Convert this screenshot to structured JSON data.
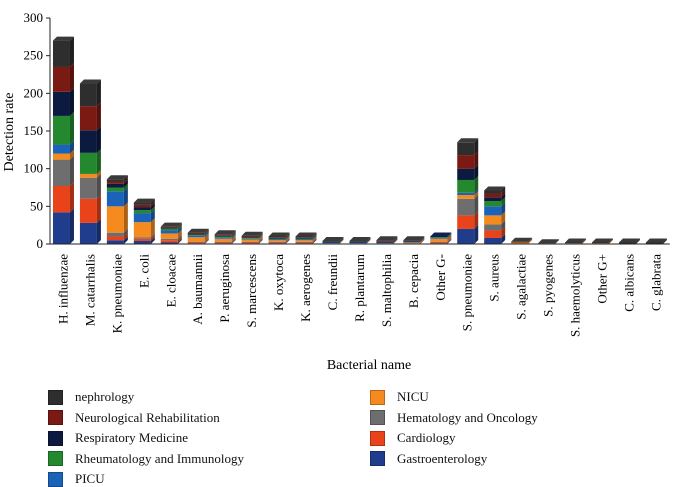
{
  "chart_data": {
    "type": "bar",
    "stacked": true,
    "title": "",
    "xlabel": "Bacterial name",
    "ylabel": "Detection rate",
    "ylim": [
      0,
      300
    ],
    "yticks": [
      0,
      50,
      100,
      150,
      200,
      250,
      300
    ],
    "categories": [
      "H. influenzae",
      "M. catarrhalis",
      "K. pneumoniae",
      "E. coli",
      "E. cloacae",
      "A. baumannii",
      "P. aeruginosa",
      "S. marcescens",
      "K. oxytoca",
      "K. aerogenes",
      "C. freundii",
      "R. plantarum",
      "S. maltophilia",
      "B. cepacia",
      "Other G-",
      "S. pneumoniae",
      "S. aureus",
      "S. agalactiae",
      "S. pyogenes",
      "S. haemolyticus",
      "Other G+",
      "C. albicans",
      "C. glabrata"
    ],
    "series": [
      {
        "name": "Gastroenterology",
        "color": "#1f3d8c",
        "values": [
          42,
          28,
          5,
          4,
          2,
          1,
          1,
          1,
          1,
          1,
          0,
          0,
          0,
          0,
          1,
          20,
          8,
          0,
          0,
          0,
          0,
          0,
          0
        ]
      },
      {
        "name": "Cardiology",
        "color": "#e8431a",
        "values": [
          35,
          32,
          5,
          3,
          3,
          1,
          1,
          1,
          1,
          1,
          0,
          0,
          0,
          1,
          1,
          18,
          10,
          0,
          0,
          0,
          0,
          0,
          0
        ]
      },
      {
        "name": "Hematology and Oncology",
        "color": "#6e6e6e",
        "values": [
          35,
          28,
          5,
          2,
          2,
          1,
          1,
          1,
          1,
          1,
          0,
          0,
          0,
          0,
          1,
          22,
          8,
          0,
          0,
          0,
          0,
          0,
          0
        ]
      },
      {
        "name": "NICU",
        "color": "#f58a1f",
        "values": [
          8,
          5,
          35,
          20,
          7,
          6,
          4,
          3,
          2,
          2,
          1,
          1,
          1,
          1,
          4,
          5,
          12,
          2,
          0,
          1,
          1,
          0,
          0
        ]
      },
      {
        "name": "PICU",
        "color": "#1b63b8",
        "values": [
          12,
          0,
          20,
          12,
          4,
          2,
          2,
          1,
          1,
          1,
          1,
          1,
          1,
          1,
          1,
          3,
          12,
          0,
          0,
          0,
          0,
          0,
          0
        ]
      },
      {
        "name": "Rheumatology and Immunology",
        "color": "#24892e",
        "values": [
          38,
          28,
          5,
          4,
          2,
          1,
          1,
          1,
          1,
          1,
          0,
          0,
          0,
          0,
          1,
          17,
          7,
          0,
          0,
          0,
          0,
          0,
          0
        ]
      },
      {
        "name": "Respiratory Medicine",
        "color": "#0c1a40",
        "values": [
          32,
          30,
          5,
          4,
          1,
          1,
          1,
          1,
          1,
          1,
          1,
          1,
          1,
          1,
          1,
          15,
          5,
          0,
          0,
          0,
          0,
          0,
          0
        ]
      },
      {
        "name": "Neurological Rehabilitation",
        "color": "#7a1a12",
        "values": [
          33,
          32,
          3,
          3,
          1,
          1,
          1,
          1,
          1,
          1,
          0,
          0,
          1,
          0,
          0,
          18,
          5,
          0,
          0,
          0,
          0,
          0,
          0
        ]
      },
      {
        "name": "nephrology",
        "color": "#2e2e2e",
        "values": [
          35,
          30,
          3,
          3,
          1,
          1,
          1,
          1,
          1,
          1,
          1,
          1,
          1,
          1,
          0,
          17,
          4,
          1,
          1,
          1,
          1,
          2,
          2
        ]
      }
    ],
    "grid": false,
    "legend_position": "bottom",
    "legend_order": [
      "nephrology",
      "NICU",
      "Neurological Rehabilitation",
      "Hematology and Oncology",
      "Respiratory Medicine",
      "Cardiology",
      "Rheumatology and Immunology",
      "Gastroenterology",
      "PICU"
    ]
  }
}
